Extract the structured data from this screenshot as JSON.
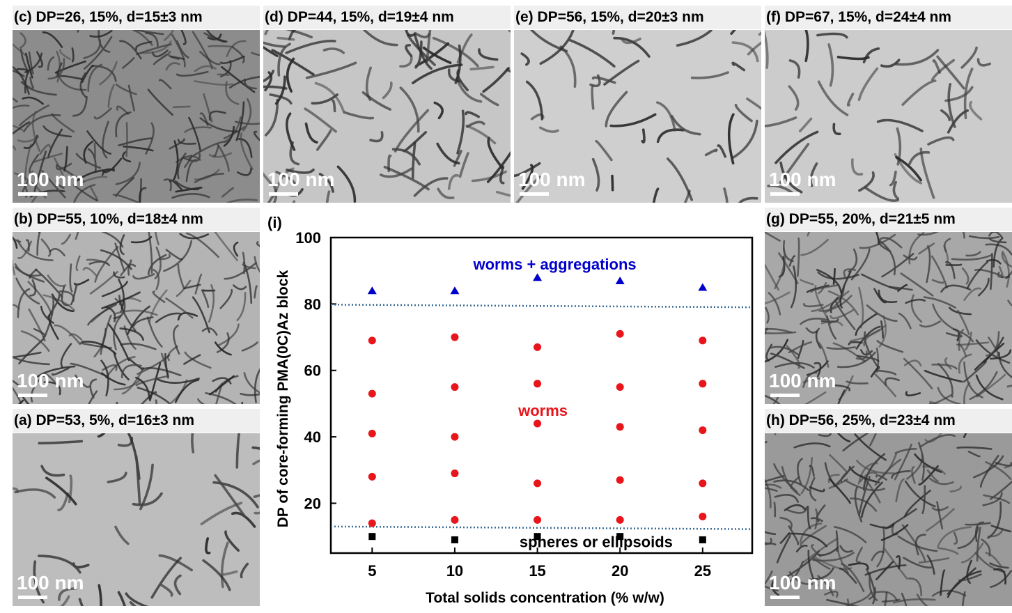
{
  "panels": [
    {
      "id": "c",
      "letter": "(c)",
      "caption": "DP=26, 15%, d=15±3 nm",
      "scale": "100 nm",
      "bg": "#8c8c8c",
      "tone": "dense"
    },
    {
      "id": "d",
      "letter": "(d)",
      "caption": "DP=44, 15%, d=19±4 nm",
      "scale": "100 nm",
      "bg": "#c6c6c6",
      "tone": "medium"
    },
    {
      "id": "e",
      "letter": "(e)",
      "caption": "DP=56, 15%, d=20±3 nm",
      "scale": "100 nm",
      "bg": "#cfcfcf",
      "tone": "sparse"
    },
    {
      "id": "f",
      "letter": "(f)",
      "caption": "DP=67, 15%, d=24±4 nm",
      "scale": "100 nm",
      "bg": "#cccccc",
      "tone": "sparse"
    },
    {
      "id": "b",
      "letter": "(b)",
      "caption": "DP=55, 10%, d=18±4 nm",
      "scale": "100 nm",
      "bg": "#b4b4b4",
      "tone": "dense"
    },
    {
      "id": "g",
      "letter": "(g)",
      "caption": "DP=55, 20%, d=21±5 nm",
      "scale": "100 nm",
      "bg": "#a8a8a8",
      "tone": "dense"
    },
    {
      "id": "a",
      "letter": "(a)",
      "caption": "DP=53, 5%, d=16±3 nm",
      "scale": "100 nm",
      "bg": "#bdbdbd",
      "tone": "sparse"
    },
    {
      "id": "h",
      "letter": "(h)",
      "caption": "DP=56, 25%, d=23±4 nm",
      "scale": "100 nm",
      "bg": "#9a9a9a",
      "tone": "dense"
    }
  ],
  "chart_data": {
    "type": "scatter",
    "panel_label": "(i)",
    "xlabel": "Total solids concentration (% w/w)",
    "ylabel": "DP of core-forming PMA(0C)Az block",
    "xlim": [
      2.5,
      28
    ],
    "ylim": [
      5,
      100
    ],
    "x_ticks": [
      5,
      10,
      15,
      20,
      25
    ],
    "y_ticks": [
      20,
      40,
      60,
      80,
      100
    ],
    "grid": false,
    "legend": "none",
    "series": [
      {
        "marker": "triangle",
        "color": "#0000cc",
        "points": [
          [
            5,
            84
          ],
          [
            10,
            84
          ],
          [
            15,
            88
          ],
          [
            20,
            87
          ],
          [
            25,
            85
          ]
        ]
      },
      {
        "marker": "circle",
        "color": "#e8151b",
        "points": [
          [
            5,
            69
          ],
          [
            5,
            53
          ],
          [
            5,
            41
          ],
          [
            5,
            28
          ],
          [
            5,
            14
          ],
          [
            10,
            70
          ],
          [
            10,
            55
          ],
          [
            10,
            40
          ],
          [
            10,
            29
          ],
          [
            10,
            15
          ],
          [
            15,
            67
          ],
          [
            15,
            56
          ],
          [
            15,
            44
          ],
          [
            15,
            26
          ],
          [
            15,
            15
          ],
          [
            20,
            71
          ],
          [
            20,
            55
          ],
          [
            20,
            43
          ],
          [
            20,
            27
          ],
          [
            20,
            15
          ],
          [
            25,
            69
          ],
          [
            25,
            56
          ],
          [
            25,
            42
          ],
          [
            25,
            26
          ],
          [
            25,
            16
          ]
        ]
      },
      {
        "marker": "square",
        "color": "#000000",
        "points": [
          [
            5,
            10
          ],
          [
            10,
            9
          ],
          [
            15,
            10
          ],
          [
            20,
            10
          ],
          [
            25,
            9
          ]
        ]
      }
    ],
    "boundaries": [
      {
        "y_start": 79.8,
        "y_end": 79.0,
        "style": "dotted",
        "color": "#3a6b95"
      },
      {
        "y_start": 13.0,
        "y_end": 12.2,
        "style": "dotted",
        "color": "#3a6b95"
      }
    ],
    "annotations": [
      {
        "text": "worms + aggregations",
        "x": 15,
        "y": 92,
        "color": "#0000cc"
      },
      {
        "text": "worms",
        "x": 15,
        "y": 48,
        "color": "#e8151b"
      },
      {
        "text": "spheres or ellipsoids",
        "x": 17.5,
        "y": 8.5,
        "color": "#000000"
      }
    ]
  }
}
